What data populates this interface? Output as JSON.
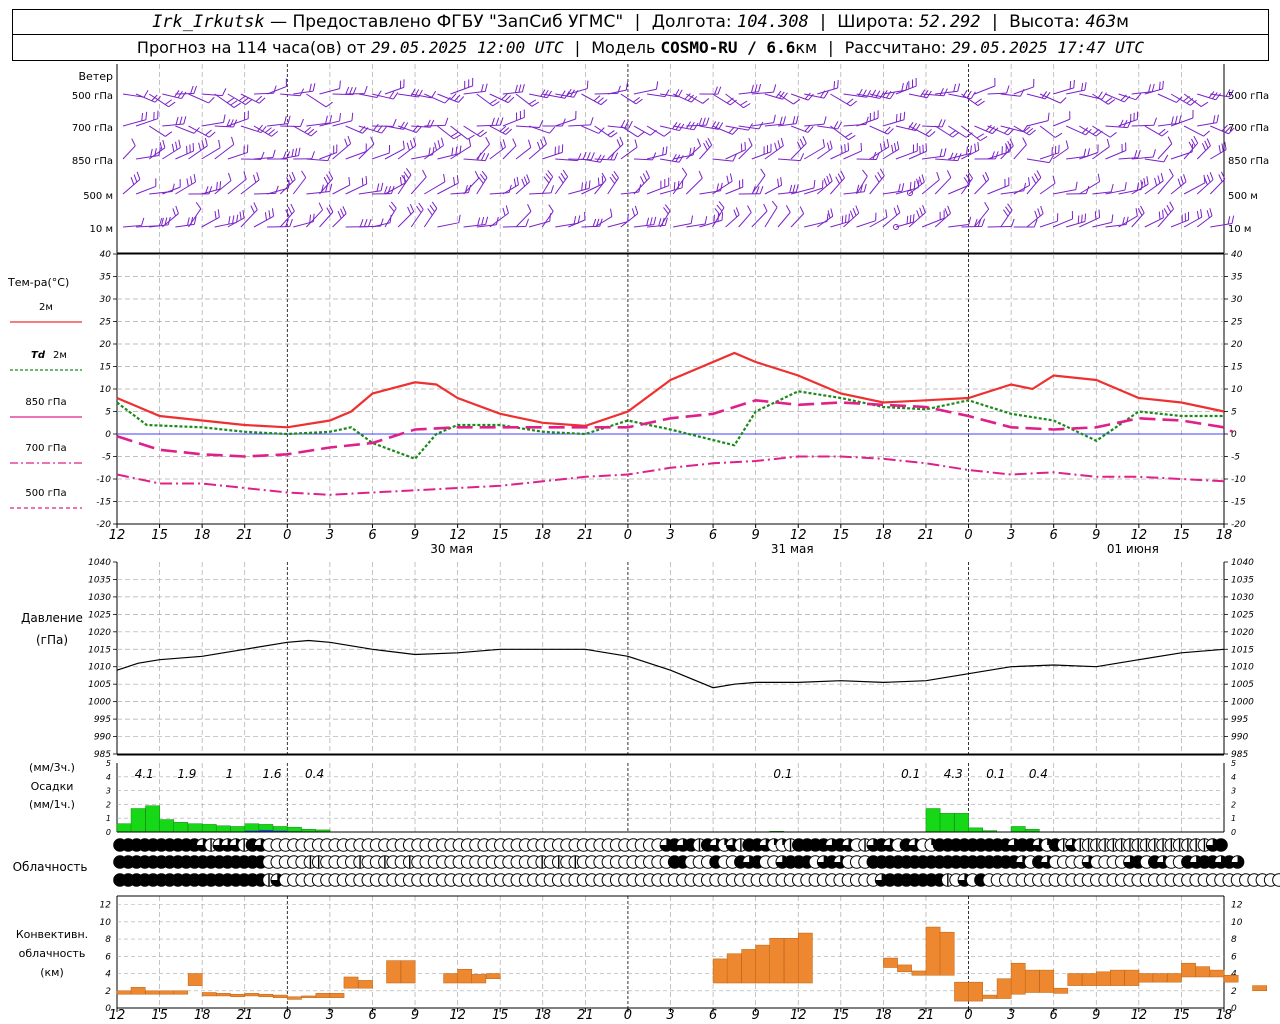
{
  "header": {
    "station": "Irk_Irkutsk",
    "dash": "—",
    "provider": "Предоставлено ФГБУ \"ЗапСиб УГМС\"",
    "lon_label": "Долгота:",
    "lon_value": "104.308",
    "lat_label": "Широта:",
    "lat_value": "52.292",
    "alt_label": "Высота:",
    "alt_value": "463",
    "alt_unit": "м",
    "forecast_label": "Прогноз на 114 часа(ов) от",
    "forecast_start": "29.05.2025 12:00 UTC",
    "model_label": "Модель",
    "model_name": "COSMO-RU / 6.6",
    "model_unit": "км",
    "calc_label": "Рассчитано:",
    "calc_time": "29.05.2025 17:47 UTC"
  },
  "x_hours": [
    "12",
    "15",
    "18",
    "21",
    "0",
    "3",
    "6",
    "9",
    "12",
    "15",
    "18",
    "21",
    "0",
    "3",
    "6",
    "9",
    "12",
    "15",
    "18",
    "21",
    "0",
    "3",
    "6",
    "9",
    "12",
    "15",
    "18"
  ],
  "day_labels": [
    {
      "label": "30 мая",
      "index": 8
    },
    {
      "label": "31 мая",
      "index": 16
    },
    {
      "label": "01 июня",
      "index": 24
    }
  ],
  "wind": {
    "title": "Ветер",
    "levels": [
      "500 гПа",
      "700 гПа",
      "850 гПа",
      "500 м",
      "10 м"
    ],
    "color": "#7a20c8"
  },
  "temperature": {
    "title": "Тем-ра(°C)",
    "ylim": [
      -20,
      40
    ],
    "ticks": [
      -20,
      -15,
      -10,
      -5,
      0,
      5,
      10,
      15,
      20,
      25,
      30,
      35,
      40
    ],
    "legend": [
      {
        "key": "t2m",
        "label": "2м",
        "color": "#ee3030"
      },
      {
        "key": "td",
        "label_it": "Td",
        "label": "2м",
        "color": "#1a8a1a"
      },
      {
        "key": "t850",
        "label": "850 гПа",
        "color": "#e0208a"
      },
      {
        "key": "t700",
        "label": "700 гПа",
        "color": "#e0208a"
      },
      {
        "key": "t500",
        "label": "500 гПа",
        "color": "#e0208a"
      }
    ],
    "series": {
      "t2m": [
        8,
        4,
        3,
        2,
        1.5,
        3,
        5,
        9,
        11.5,
        11,
        8,
        4.5,
        2.5,
        1.8,
        5,
        12,
        18,
        16,
        13,
        9,
        7,
        7.5,
        8,
        11,
        10,
        13,
        12,
        8,
        7,
        5
      ],
      "td": [
        7,
        2,
        1.5,
        0.5,
        0,
        0.5,
        1.5,
        -2,
        -5.5,
        0,
        2,
        2,
        0.5,
        0,
        3,
        1,
        -2.5,
        5,
        9.5,
        8,
        6,
        5.5,
        7.5,
        4.5,
        3,
        -1.5,
        5,
        4,
        4
      ],
      "t850": [
        -0.5,
        -3.5,
        -4.5,
        -5,
        -4.5,
        -3,
        -2,
        1,
        1.5,
        1.5,
        1.5,
        1.5,
        1.5,
        3.5,
        4.5,
        7.5,
        6.5,
        7,
        6.5,
        6,
        4,
        1.5,
        1,
        1.5,
        3.5,
        3,
        1.5,
        0.5
      ],
      "t700": [
        -9,
        -11,
        -11,
        -12,
        -13,
        -13.5,
        -13,
        -12.5,
        -12,
        -11.5,
        -10.5,
        -9.5,
        -9,
        -7.5,
        -6.5,
        -6,
        -5,
        -5,
        -5.5,
        -6.5,
        -8,
        -9,
        -8.5,
        -9.5,
        -9.5,
        -10,
        -10.5
      ]
    },
    "series_x": {
      "t2m": [
        0,
        1,
        2,
        3,
        4,
        5,
        5.5,
        6,
        7,
        7.5,
        8,
        9,
        10,
        11,
        12,
        13,
        14.5,
        15,
        16,
        17,
        18,
        19,
        20,
        21,
        21.5,
        22,
        23,
        24,
        25,
        26
      ],
      "td": [
        0,
        0.7,
        2,
        3,
        4,
        5,
        5.5,
        6,
        7,
        7.5,
        8,
        9,
        10,
        11,
        12,
        13,
        14.5,
        15,
        16,
        17,
        18,
        19,
        20,
        21,
        22,
        23,
        24,
        25,
        26
      ],
      "t850": [
        0,
        1,
        2,
        3,
        4,
        5,
        6,
        7,
        8,
        9,
        10,
        11,
        12,
        13,
        14,
        15,
        16,
        17,
        18,
        19,
        20,
        21,
        22,
        23,
        24,
        25,
        26,
        26.2
      ],
      "t700": [
        0,
        1,
        2,
        3,
        4,
        5,
        6,
        7,
        8,
        9,
        10,
        11,
        12,
        13,
        14,
        15,
        16,
        17,
        18,
        19,
        20,
        21,
        22,
        23,
        24,
        25,
        26
      ]
    }
  },
  "pressure": {
    "title": "Давление",
    "unit": "(гПа)",
    "ylim": [
      985,
      1040
    ],
    "ticks": [
      985,
      990,
      995,
      1000,
      1005,
      1010,
      1015,
      1020,
      1025,
      1030,
      1035,
      1040
    ],
    "x": [
      0,
      0.5,
      1,
      2,
      3,
      4,
      4.5,
      5,
      6,
      7,
      8,
      9,
      10,
      11,
      12,
      13,
      14,
      14.5,
      15,
      16,
      17,
      18,
      19,
      20,
      21,
      22,
      23,
      24,
      25,
      26
    ],
    "values": [
      1009,
      1011,
      1012,
      1013,
      1015,
      1017,
      1017.5,
      1017,
      1015,
      1013.5,
      1014,
      1015,
      1015,
      1015,
      1013,
      1009,
      1004,
      1005,
      1005.5,
      1005.5,
      1006,
      1005.5,
      1006,
      1008,
      1010,
      1010.5,
      1010,
      1012,
      1014,
      1015
    ]
  },
  "precip": {
    "unit3": "(мм/3ч.)",
    "title": "Осадки",
    "unit1": "(мм/1ч.)",
    "ylim": [
      0,
      5
    ],
    "ticks": [
      0,
      1,
      2,
      3,
      4,
      5
    ],
    "labels": [
      {
        "x": 0.5,
        "text": "4.1"
      },
      {
        "x": 1.5,
        "text": "1.9"
      },
      {
        "x": 2.5,
        "text": "1"
      },
      {
        "x": 3.5,
        "text": "1.6"
      },
      {
        "x": 4.5,
        "text": "0.4"
      },
      {
        "x": 15.5,
        "text": "0.1"
      },
      {
        "x": 18.5,
        "text": "0.1"
      },
      {
        "x": 19.5,
        "text": "4.3"
      },
      {
        "x": 20.5,
        "text": "0.1"
      },
      {
        "x": 21.5,
        "text": "0.4"
      }
    ],
    "bars_x": [
      0,
      0.33,
      0.67,
      1,
      1.33,
      1.67,
      2,
      2.33,
      2.67,
      3,
      3.33,
      3.67,
      4,
      4.33,
      4.67,
      15.33,
      19,
      19.33,
      19.67,
      20,
      20.33,
      21,
      21.33
    ],
    "bars": [
      0.6,
      1.7,
      1.9,
      0.9,
      0.7,
      0.6,
      0.55,
      0.45,
      0.4,
      0.6,
      0.55,
      0.4,
      0.35,
      0.2,
      0.15,
      0.05,
      1.7,
      1.35,
      1.35,
      0.3,
      0.1,
      0.4,
      0.2
    ],
    "blue_x": [
      3,
      3.33,
      3.67,
      4
    ],
    "blue": [
      0.1,
      0.15,
      0.1,
      0.05
    ],
    "green": "#16d816",
    "blue_color": "#2244cc"
  },
  "clouds": {
    "title": "Облачность",
    "rows": [
      [
        8,
        8,
        8,
        8,
        8,
        8,
        8,
        8,
        8,
        8,
        6,
        4,
        6,
        6,
        6,
        4,
        8,
        6,
        0,
        0,
        0,
        0,
        0,
        0,
        0,
        0,
        0,
        0,
        0,
        0,
        0,
        0,
        0,
        0,
        0,
        0,
        0,
        0,
        0,
        0,
        0,
        0,
        0,
        0,
        0,
        0,
        0,
        0,
        0,
        0,
        0,
        0,
        0,
        0,
        0,
        0,
        0,
        0,
        0,
        0,
        0,
        0,
        0,
        0,
        0,
        0,
        6,
        8,
        6,
        8,
        4,
        8,
        6,
        2,
        6,
        4,
        8,
        8,
        6,
        2,
        2,
        4,
        8,
        8,
        8,
        8,
        6,
        8,
        6,
        0,
        4,
        6,
        8,
        6,
        0,
        8,
        6,
        0,
        2,
        8,
        8,
        8,
        8,
        8,
        8,
        8,
        8,
        8,
        6,
        8,
        8,
        6,
        2,
        8,
        4,
        6,
        4,
        4,
        4,
        4,
        4,
        4,
        4,
        4,
        4,
        4,
        4,
        4,
        4,
        4,
        4,
        4,
        6,
        8
      ],
      [
        8,
        8,
        8,
        8,
        8,
        8,
        8,
        8,
        8,
        8,
        8,
        8,
        8,
        8,
        8,
        8,
        8,
        8,
        0,
        0,
        0,
        0,
        0,
        4,
        4,
        0,
        0,
        0,
        0,
        4,
        0,
        0,
        4,
        0,
        0,
        4,
        0,
        0,
        0,
        0,
        0,
        0,
        0,
        0,
        0,
        0,
        0,
        0,
        0,
        0,
        0,
        4,
        0,
        4,
        0,
        4,
        0,
        0,
        0,
        0,
        0,
        0,
        0,
        0,
        0,
        0,
        0,
        8,
        8,
        0,
        0,
        0,
        8,
        0,
        0,
        8,
        6,
        8,
        0,
        0,
        6,
        8,
        8,
        8,
        0,
        6,
        8,
        6,
        0,
        0,
        0,
        8,
        8,
        8,
        8,
        8,
        8,
        8,
        8,
        8,
        8,
        8,
        8,
        8,
        8,
        8,
        8,
        8,
        8,
        6,
        0,
        8,
        6,
        0,
        0,
        0,
        0,
        6,
        0,
        0,
        0,
        0,
        6,
        8,
        0,
        8,
        6,
        0,
        0,
        8,
        6,
        8,
        8,
        6,
        8,
        6
      ],
      [
        8,
        8,
        8,
        8,
        8,
        8,
        8,
        8,
        8,
        8,
        8,
        8,
        8,
        8,
        8,
        8,
        8,
        8,
        4,
        6,
        0,
        0,
        0,
        0,
        0,
        0,
        0,
        0,
        0,
        0,
        0,
        0,
        0,
        0,
        0,
        0,
        0,
        0,
        0,
        0,
        0,
        0,
        0,
        0,
        0,
        0,
        0,
        0,
        0,
        0,
        0,
        0,
        0,
        0,
        0,
        0,
        0,
        0,
        0,
        0,
        0,
        0,
        0,
        0,
        0,
        0,
        0,
        0,
        0,
        0,
        0,
        0,
        0,
        0,
        0,
        0,
        0,
        0,
        0,
        0,
        0,
        0,
        0,
        0,
        0,
        0,
        0,
        0,
        0,
        0,
        0,
        0,
        6,
        8,
        8,
        8,
        8,
        8,
        8,
        8,
        4,
        0,
        6,
        0,
        8,
        0,
        0,
        0,
        0,
        0,
        0,
        0,
        0,
        0,
        0,
        0,
        0,
        0,
        0,
        0,
        0,
        0,
        0,
        0,
        0,
        0,
        0,
        0,
        0,
        0,
        0,
        0,
        0,
        0,
        0,
        0,
        0,
        0,
        0,
        0,
        0,
        0,
        0,
        0,
        0,
        0,
        0,
        0,
        0,
        0,
        6
      ]
    ]
  },
  "convective": {
    "title1": "Конвективн.",
    "title2": "облачность",
    "unit": "(км)",
    "ylim": [
      0,
      13
    ],
    "ticks": [
      0,
      2,
      4,
      6,
      8,
      10,
      12
    ],
    "color": "#ee8830",
    "blocks": [
      {
        "x": 0,
        "bottom": 1.6,
        "top": 2.0
      },
      {
        "x": 0.33,
        "bottom": 1.6,
        "top": 2.4
      },
      {
        "x": 0.67,
        "bottom": 1.6,
        "top": 2.0
      },
      {
        "x": 1,
        "bottom": 1.6,
        "top": 2.0
      },
      {
        "x": 1.33,
        "bottom": 1.6,
        "top": 2.0
      },
      {
        "x": 1.67,
        "bottom": 2.6,
        "top": 4.0
      },
      {
        "x": 2,
        "bottom": 1.4,
        "top": 1.8
      },
      {
        "x": 2.33,
        "bottom": 1.4,
        "top": 1.7
      },
      {
        "x": 2.67,
        "bottom": 1.3,
        "top": 1.6
      },
      {
        "x": 3,
        "bottom": 1.4,
        "top": 1.7
      },
      {
        "x": 3.33,
        "bottom": 1.3,
        "top": 1.6
      },
      {
        "x": 3.67,
        "bottom": 1.2,
        "top": 1.5
      },
      {
        "x": 4,
        "bottom": 1.0,
        "top": 1.3
      },
      {
        "x": 4.33,
        "bottom": 1.2,
        "top": 1.4
      },
      {
        "x": 4.67,
        "bottom": 1.2,
        "top": 1.7
      },
      {
        "x": 5,
        "bottom": 1.2,
        "top": 1.7
      },
      {
        "x": 5.33,
        "bottom": 2.3,
        "top": 3.6
      },
      {
        "x": 5.67,
        "bottom": 2.3,
        "top": 3.2
      },
      {
        "x": 6.33,
        "bottom": 2.9,
        "top": 5.5
      },
      {
        "x": 6.67,
        "bottom": 2.9,
        "top": 5.5
      },
      {
        "x": 7.67,
        "bottom": 2.9,
        "top": 4.0
      },
      {
        "x": 8,
        "bottom": 2.9,
        "top": 4.5
      },
      {
        "x": 8.33,
        "bottom": 2.9,
        "top": 3.9
      },
      {
        "x": 8.67,
        "bottom": 3.4,
        "top": 4.0
      },
      {
        "x": 14,
        "bottom": 2.9,
        "top": 5.7
      },
      {
        "x": 14.33,
        "bottom": 2.9,
        "top": 6.3
      },
      {
        "x": 14.67,
        "bottom": 2.9,
        "top": 6.8
      },
      {
        "x": 15,
        "bottom": 2.9,
        "top": 7.3
      },
      {
        "x": 15.33,
        "bottom": 2.9,
        "top": 8.1
      },
      {
        "x": 15.67,
        "bottom": 2.9,
        "top": 8.1
      },
      {
        "x": 16,
        "bottom": 2.9,
        "top": 8.7
      },
      {
        "x": 18,
        "bottom": 4.7,
        "top": 5.8
      },
      {
        "x": 18.33,
        "bottom": 4.2,
        "top": 5.0
      },
      {
        "x": 18.67,
        "bottom": 3.8,
        "top": 4.3
      },
      {
        "x": 19,
        "bottom": 3.8,
        "top": 9.4
      },
      {
        "x": 19.33,
        "bottom": 3.8,
        "top": 8.8
      },
      {
        "x": 19.67,
        "bottom": 0.8,
        "top": 3.0
      },
      {
        "x": 20,
        "bottom": 0.8,
        "top": 3.0
      },
      {
        "x": 20.33,
        "bottom": 1.1,
        "top": 1.5
      },
      {
        "x": 20.67,
        "bottom": 1.1,
        "top": 3.4
      },
      {
        "x": 21,
        "bottom": 1.6,
        "top": 5.2
      },
      {
        "x": 21.33,
        "bottom": 1.8,
        "top": 4.4
      },
      {
        "x": 21.67,
        "bottom": 1.8,
        "top": 4.4
      },
      {
        "x": 22,
        "bottom": 1.7,
        "top": 2.3
      },
      {
        "x": 22.33,
        "bottom": 2.6,
        "top": 4.0
      },
      {
        "x": 22.67,
        "bottom": 2.6,
        "top": 4.0
      },
      {
        "x": 23,
        "bottom": 2.6,
        "top": 4.2
      },
      {
        "x": 23.33,
        "bottom": 2.6,
        "top": 4.4
      },
      {
        "x": 23.67,
        "bottom": 2.6,
        "top": 4.4
      },
      {
        "x": 24,
        "bottom": 3.0,
        "top": 4.0
      },
      {
        "x": 24.33,
        "bottom": 3.0,
        "top": 4.0
      },
      {
        "x": 24.67,
        "bottom": 3.0,
        "top": 4.0
      },
      {
        "x": 25,
        "bottom": 3.6,
        "top": 5.2
      },
      {
        "x": 25.33,
        "bottom": 3.6,
        "top": 4.8
      },
      {
        "x": 25.67,
        "bottom": 3.6,
        "top": 4.4
      },
      {
        "x": 26,
        "bottom": 3.0,
        "top": 3.8
      },
      {
        "x": 26.67,
        "bottom": 2.0,
        "top": 2.6
      }
    ]
  }
}
